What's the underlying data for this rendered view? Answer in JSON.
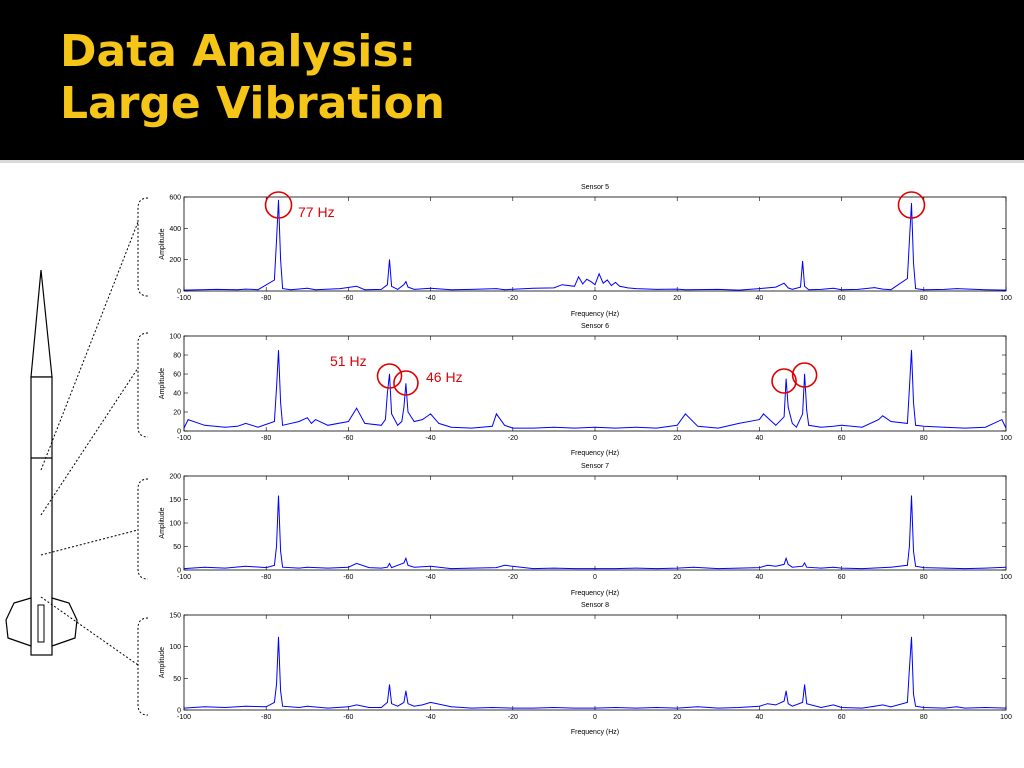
{
  "slide": {
    "title_line1": "Data Analysis:",
    "title_line2": "Large Vibration"
  },
  "colors": {
    "title": "#f5c518",
    "band": "#000000",
    "trace": "#0000ff",
    "annotation": "#e00000"
  },
  "chart_data": [
    {
      "type": "line",
      "title": "Sensor 5",
      "xlabel": "Frequency (Hz)",
      "ylabel": "Amplitude",
      "xlim": [
        -100,
        100
      ],
      "ylim": [
        0,
        600
      ],
      "x_ticks": [
        -100,
        -80,
        -60,
        -40,
        -20,
        0,
        20,
        40,
        60,
        80,
        100
      ],
      "y_ticks": [
        0,
        200,
        400,
        600
      ],
      "series": [
        {
          "x": [
            -100,
            -92,
            -87,
            -85,
            -82,
            -78,
            -77.5,
            -77,
            -76.5,
            -76,
            -74,
            -70,
            -68,
            -62,
            -58,
            -56,
            -52,
            -50.5,
            -50,
            -49.5,
            -48,
            -46.5,
            -46,
            -45.5,
            -44,
            -40,
            -35,
            -30,
            -24,
            -22,
            -15,
            -10,
            -8,
            -5,
            -4,
            -3,
            -2,
            -1,
            0,
            1,
            2,
            3,
            4,
            5,
            6,
            8,
            10,
            15,
            20,
            22,
            30,
            35,
            40,
            44,
            46,
            46.5,
            47,
            48,
            50,
            50.5,
            51,
            52,
            55,
            58,
            60,
            64,
            68,
            70,
            72,
            76,
            76.5,
            77,
            77.5,
            78,
            80,
            85,
            88,
            95,
            100
          ],
          "y": [
            6,
            10,
            8,
            12,
            8,
            70,
            320,
            580,
            200,
            15,
            8,
            18,
            8,
            15,
            30,
            8,
            10,
            40,
            200,
            30,
            10,
            40,
            60,
            25,
            10,
            18,
            8,
            10,
            15,
            8,
            18,
            20,
            40,
            30,
            90,
            45,
            75,
            60,
            40,
            110,
            50,
            70,
            35,
            55,
            30,
            20,
            15,
            10,
            12,
            8,
            10,
            6,
            15,
            25,
            50,
            35,
            20,
            10,
            25,
            190,
            30,
            8,
            10,
            18,
            8,
            10,
            22,
            12,
            8,
            80,
            320,
            560,
            180,
            15,
            8,
            10,
            15,
            8,
            6
          ]
        }
      ]
    },
    {
      "type": "line",
      "title": "Sensor 6",
      "xlabel": "Frequency (Hz)",
      "ylabel": "Amplitude",
      "xlim": [
        -100,
        100
      ],
      "ylim": [
        0,
        100
      ],
      "x_ticks": [
        -100,
        -80,
        -60,
        -40,
        -20,
        0,
        20,
        40,
        60,
        80,
        100
      ],
      "y_ticks": [
        0,
        20,
        40,
        60,
        80,
        100
      ],
      "series": [
        {
          "x": [
            -100,
            -99,
            -95,
            -90,
            -87,
            -85,
            -82,
            -78,
            -77.5,
            -77,
            -76.5,
            -76,
            -72,
            -70,
            -69,
            -68,
            -65,
            -60,
            -58,
            -56,
            -52,
            -51,
            -50.5,
            -50,
            -49.5,
            -48,
            -47,
            -46.5,
            -46,
            -45.5,
            -44,
            -42,
            -40,
            -38,
            -35,
            -30,
            -25,
            -24,
            -22,
            -20,
            -15,
            -10,
            -5,
            0,
            5,
            10,
            15,
            20,
            22,
            25,
            30,
            35,
            40,
            41,
            42,
            44,
            46,
            46.5,
            47,
            48,
            49,
            50.5,
            51,
            51.5,
            52,
            55,
            58,
            60,
            65,
            69,
            70,
            72,
            76,
            76.5,
            77,
            77.5,
            78,
            80,
            85,
            90,
            95,
            99,
            100
          ],
          "y": [
            3,
            12,
            6,
            4,
            5,
            8,
            4,
            10,
            45,
            85,
            30,
            6,
            10,
            14,
            8,
            12,
            6,
            10,
            24,
            8,
            6,
            12,
            40,
            60,
            18,
            6,
            10,
            25,
            50,
            20,
            10,
            12,
            18,
            8,
            4,
            3,
            5,
            18,
            6,
            3,
            3,
            4,
            3,
            4,
            3,
            4,
            3,
            6,
            18,
            5,
            3,
            8,
            12,
            18,
            14,
            6,
            15,
            55,
            25,
            8,
            4,
            18,
            60,
            22,
            6,
            4,
            5,
            6,
            4,
            12,
            16,
            10,
            8,
            45,
            85,
            30,
            6,
            5,
            4,
            3,
            4,
            12,
            3
          ]
        }
      ],
      "annotations": [
        "51 Hz",
        "46 Hz"
      ]
    },
    {
      "type": "line",
      "title": "Sensor 7",
      "xlabel": "Frequency (Hz)",
      "ylabel": "Amplitude",
      "xlim": [
        -100,
        100
      ],
      "ylim": [
        0,
        200
      ],
      "x_ticks": [
        -100,
        -80,
        -60,
        -40,
        -20,
        0,
        20,
        40,
        60,
        80,
        100
      ],
      "y_ticks": [
        0,
        50,
        100,
        150,
        200
      ],
      "series": [
        {
          "x": [
            -100,
            -95,
            -90,
            -85,
            -80,
            -78,
            -77.5,
            -77,
            -76.5,
            -76,
            -72,
            -70,
            -65,
            -60,
            -58,
            -55,
            -52,
            -50.5,
            -50,
            -49.5,
            -48,
            -46.5,
            -46,
            -45.5,
            -44,
            -40,
            -35,
            -30,
            -24,
            -22,
            -15,
            -10,
            -5,
            0,
            5,
            10,
            15,
            20,
            24,
            30,
            35,
            40,
            42,
            44,
            46,
            46.5,
            47,
            48,
            50.5,
            51,
            51.5,
            55,
            58,
            60,
            65,
            70,
            72,
            76,
            76.5,
            77,
            77.5,
            78,
            80,
            85,
            90,
            95,
            100
          ],
          "y": [
            3,
            6,
            4,
            8,
            5,
            10,
            50,
            158,
            40,
            6,
            4,
            6,
            4,
            6,
            14,
            5,
            4,
            6,
            14,
            5,
            10,
            15,
            25,
            10,
            6,
            8,
            3,
            4,
            5,
            10,
            3,
            4,
            3,
            3,
            3,
            4,
            3,
            4,
            6,
            3,
            4,
            5,
            10,
            8,
            12,
            25,
            12,
            6,
            8,
            15,
            6,
            4,
            6,
            4,
            3,
            5,
            6,
            10,
            50,
            158,
            40,
            8,
            5,
            4,
            3,
            4,
            6
          ]
        }
      ]
    },
    {
      "type": "line",
      "title": "Sensor 8",
      "xlabel": "Frequency (Hz)",
      "ylabel": "Amplitude",
      "xlim": [
        -100,
        100
      ],
      "ylim": [
        0,
        150
      ],
      "x_ticks": [
        -100,
        -80,
        -60,
        -40,
        -20,
        0,
        20,
        40,
        60,
        80,
        100
      ],
      "y_ticks": [
        0,
        50,
        100,
        150
      ],
      "series": [
        {
          "x": [
            -100,
            -95,
            -90,
            -85,
            -80,
            -78,
            -77.5,
            -77,
            -76.5,
            -76,
            -72,
            -70,
            -65,
            -60,
            -58,
            -55,
            -52,
            -50.5,
            -50,
            -49.5,
            -48,
            -46.5,
            -46,
            -45.5,
            -44,
            -42,
            -40,
            -35,
            -30,
            -25,
            -20,
            -15,
            -10,
            -5,
            0,
            5,
            10,
            15,
            20,
            25,
            30,
            35,
            40,
            42,
            44,
            46,
            46.5,
            47,
            48,
            50.5,
            51,
            51.5,
            55,
            58,
            60,
            65,
            68,
            70,
            72,
            76,
            76.5,
            77,
            77.5,
            78,
            80,
            85,
            88,
            90,
            95,
            100
          ],
          "y": [
            3,
            5,
            4,
            6,
            5,
            12,
            40,
            115,
            30,
            6,
            4,
            6,
            3,
            5,
            8,
            4,
            4,
            12,
            40,
            10,
            6,
            12,
            30,
            10,
            6,
            8,
            12,
            5,
            3,
            4,
            3,
            3,
            4,
            3,
            3,
            4,
            3,
            4,
            3,
            5,
            3,
            4,
            6,
            10,
            8,
            14,
            30,
            10,
            6,
            12,
            40,
            10,
            4,
            8,
            4,
            3,
            6,
            8,
            5,
            12,
            65,
            115,
            25,
            6,
            4,
            3,
            5,
            3,
            4,
            3
          ]
        }
      ]
    }
  ]
}
